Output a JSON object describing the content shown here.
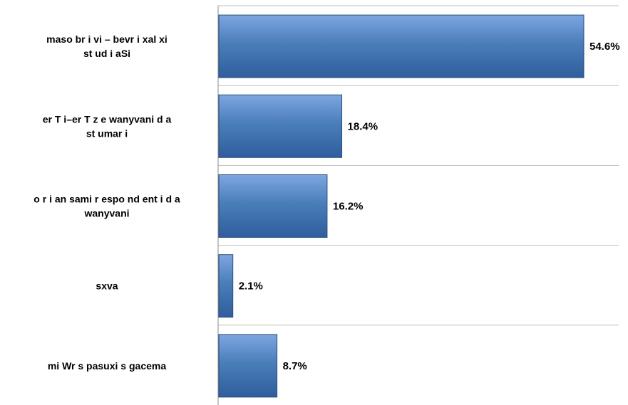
{
  "chart_data": {
    "type": "bar",
    "orientation": "horizontal",
    "categories": [
      [
        "maso br i vi – bevr i xal xi",
        "st ud i aSi"
      ],
      [
        "er T i–er T z e wanyvani d a",
        "st umar i"
      ],
      [
        "o r i an sami r espo nd ent i d a",
        "wanyvani"
      ],
      [
        "sxva"
      ],
      [
        "mi Wr s pasuxi s gacema"
      ]
    ],
    "values": [
      54.6,
      18.4,
      16.2,
      2.1,
      8.7
    ],
    "value_labels": [
      "54.6%",
      "18.4%",
      "16.2%",
      "2.1%",
      "8.7%"
    ],
    "xlim": [
      0,
      60
    ],
    "grid": true,
    "legend": "none",
    "colors": {
      "bar_top": "#7ea6e0",
      "bar_mid": "#4a7ebb",
      "bar_bottom": "#2f5e9c",
      "bar_edge": "#2c4f7c",
      "grid": "#bfbfbf",
      "axis": "#8c8c8c"
    }
  }
}
